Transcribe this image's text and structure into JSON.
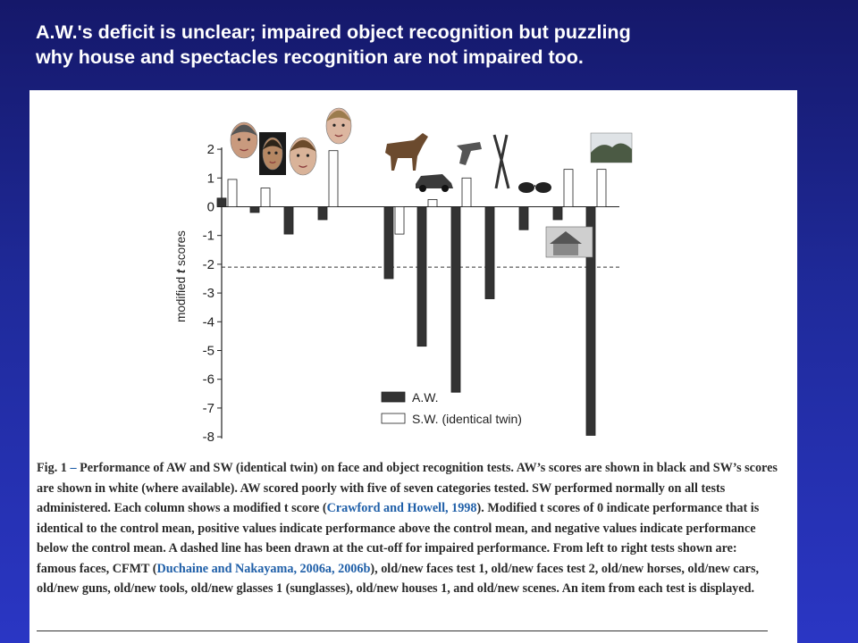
{
  "slide": {
    "title_line1": "A.W.'s deficit is unclear;  impaired object recognition but puzzling",
    "title_line2": "why house and spectacles recognition are not impaired too."
  },
  "chart_data": {
    "type": "bar",
    "ylabel_prefix": "modified ",
    "ylabel_italic": "t",
    "ylabel_suffix": " scores",
    "ylim": [
      -8,
      2
    ],
    "yticks": [
      2,
      1,
      0,
      -1,
      -2,
      -3,
      -4,
      -5,
      -6,
      -7,
      -8
    ],
    "cutoff": -2.1,
    "categories": [
      "famous faces",
      "CFMT",
      "old/new faces test 1",
      "old/new faces test 2",
      "old/new horses",
      "old/new cars",
      "old/new guns",
      "old/new tools",
      "old/new glasses 1 (sunglasses)",
      "old/new houses 1",
      "old/new scenes"
    ],
    "series": [
      {
        "name": "A.W.",
        "color": "#333333",
        "values": [
          0.3,
          -0.2,
          -0.95,
          -0.45,
          -2.5,
          -4.85,
          -6.45,
          -3.2,
          -0.8,
          -0.45,
          -7.95
        ]
      },
      {
        "name": "S.W. (identical twin)",
        "color": "#ffffff",
        "values": [
          0.95,
          0.65,
          null,
          1.95,
          -0.95,
          0.25,
          1.0,
          null,
          null,
          1.3,
          1.3
        ]
      }
    ],
    "legend": "bottom-right",
    "grid": false
  },
  "caption": {
    "fig_label": "Fig. 1",
    "dash": " – ",
    "text1": "Performance of AW and SW (identical twin) on face and object recognition tests. AW’s scores are shown in black and SW’s scores are shown in white (where available). AW scored poorly with five of seven categories tested. SW performed normally on all tests administered. Each column shows a modified t score (",
    "cite1": "Crawford and Howell, 1998",
    "text2": "). Modified t scores of 0 indicate performance that is identical to the control mean, positive values indicate performance above the control mean, and negative values indicate performance below the control mean. A dashed line has been drawn at the cut-off for impaired performance. From left to right tests shown are: famous faces, CFMT (",
    "cite2": "Duchaine and Nakayama, 2006a, 2006b",
    "text3": "), old/new faces test 1, old/new faces test 2, old/new horses, old/new cars, old/new guns, old/new tools, old/new glasses 1 (sunglasses), old/new houses 1, and old/new scenes. An item from each test is displayed."
  },
  "icons": [
    "face-icon",
    "face-icon",
    "face-icon",
    "face-icon",
    "horse-icon",
    "car-icon",
    "gun-icon",
    "pliers-icon",
    "sunglasses-icon",
    "house-icon",
    "scene-icon"
  ]
}
